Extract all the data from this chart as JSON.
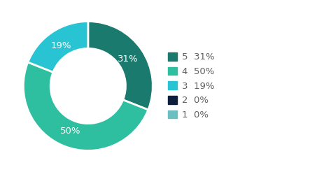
{
  "slices": [
    31,
    50,
    19,
    0,
    0
  ],
  "labels": [
    "5",
    "4",
    "3",
    "2",
    "1"
  ],
  "percentages": [
    "31%",
    "50%",
    "19%",
    "0%",
    "0%"
  ],
  "colors": [
    "#1a7a6e",
    "#2dbfa0",
    "#29c4d4",
    "#0d1f3c",
    "#6bbfc0"
  ],
  "legend_labels": [
    "5  31%",
    "4  50%",
    "3  19%",
    "2  0%",
    "1  0%"
  ],
  "text_color": "#606060",
  "background_color": "#ffffff",
  "label_fontsize": 9.5,
  "legend_fontsize": 9.5
}
